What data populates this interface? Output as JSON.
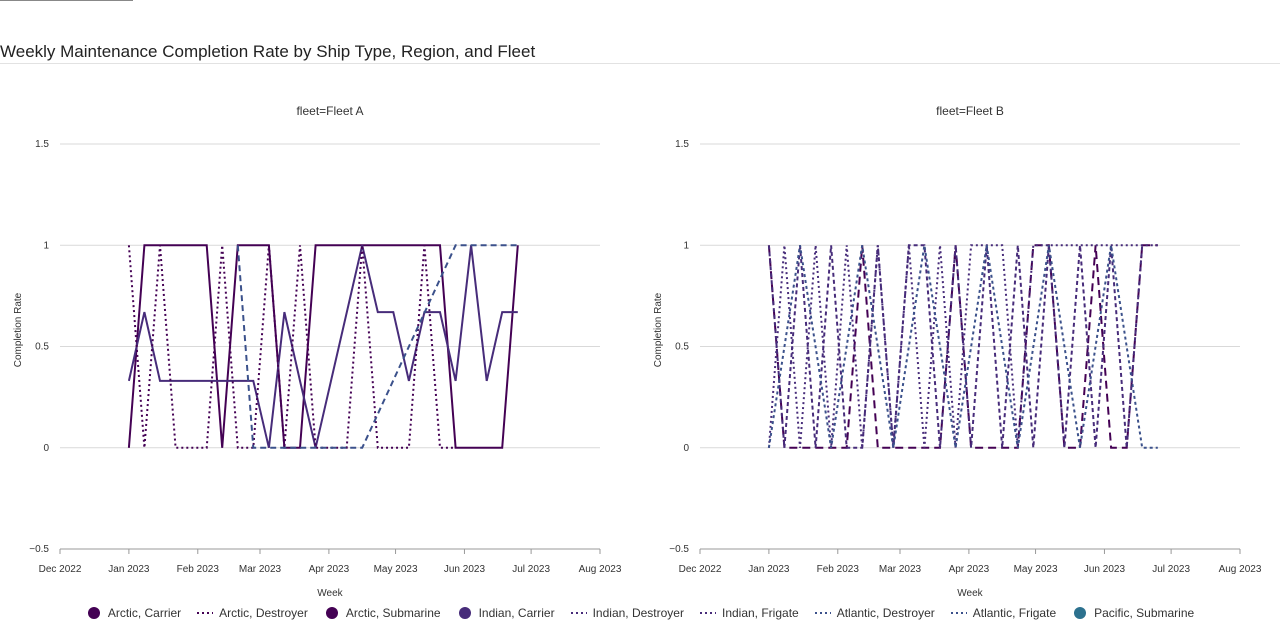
{
  "title": "Weekly Maintenance Completion Rate by Ship Type, Region, and Fleet",
  "legend": [
    {
      "name": "Arctic, Carrier",
      "color": "#440154",
      "symbol": "marker"
    },
    {
      "name": "Arctic, Destroyer",
      "color": "#440154",
      "symbol": "dot"
    },
    {
      "name": "Arctic, Submarine",
      "color": "#440154",
      "symbol": "marker"
    },
    {
      "name": "Indian, Carrier",
      "color": "#472c7a",
      "symbol": "marker"
    },
    {
      "name": "Indian, Destroyer",
      "color": "#472c7a",
      "symbol": "dot"
    },
    {
      "name": "Indian, Frigate",
      "color": "#472c7a",
      "symbol": "dot"
    },
    {
      "name": "Atlantic, Destroyer",
      "color": "#3b518b",
      "symbol": "dot"
    },
    {
      "name": "Atlantic, Frigate",
      "color": "#3b518b",
      "symbol": "dot"
    },
    {
      "name": "Pacific, Submarine",
      "color": "#2c718e",
      "symbol": "marker"
    }
  ],
  "chart_data": [
    {
      "type": "line",
      "title": "fleet=Fleet A",
      "xlabel": "Week",
      "ylabel": "Completion Rate",
      "xlim": [
        "2022-12-01",
        "2023-08-01"
      ],
      "ylim": [
        -0.5,
        1.5
      ],
      "yticks": [
        -0.5,
        0,
        0.5,
        1,
        1.5
      ],
      "ytick_labels": [
        "−0.5",
        "0",
        "0.5",
        "1",
        "1.5"
      ],
      "xticks": [
        "2022-12-01",
        "2023-01-01",
        "2023-02-01",
        "2023-03-01",
        "2023-04-01",
        "2023-05-01",
        "2023-06-01",
        "2023-07-01",
        "2023-08-01"
      ],
      "xtick_labels": [
        "Dec 2022",
        "Jan 2023",
        "Feb 2023",
        "Mar 2023",
        "Apr 2023",
        "May 2023",
        "Jun 2023",
        "Jul 2023",
        "Aug 2023"
      ],
      "grid": true,
      "series": [
        {
          "name": "Arctic, Submarine",
          "color": "#440154",
          "dash": "solid",
          "width": 2,
          "x": [
            "2023-01-01",
            "2023-01-08",
            "2023-02-05",
            "2023-02-12",
            "2023-02-19",
            "2023-03-05",
            "2023-03-12",
            "2023-03-19",
            "2023-03-26",
            "2023-05-21",
            "2023-05-28",
            "2023-06-18",
            "2023-06-25"
          ],
          "y": [
            0,
            1,
            1,
            0,
            1,
            1,
            0,
            0,
            1,
            1,
            0,
            0,
            1
          ]
        },
        {
          "name": "Indian, Carrier",
          "color": "#472c7a",
          "dash": "solid",
          "width": 2,
          "x": [
            "2023-01-01",
            "2023-01-08",
            "2023-01-15",
            "2023-01-22",
            "2023-02-05",
            "2023-02-26",
            "2023-03-05",
            "2023-03-12",
            "2023-03-19",
            "2023-03-26",
            "2023-04-16",
            "2023-04-23",
            "2023-04-30",
            "2023-05-07",
            "2023-05-14",
            "2023-05-21",
            "2023-05-28",
            "2023-06-04",
            "2023-06-11",
            "2023-06-18",
            "2023-06-25"
          ],
          "y": [
            0.33,
            0.67,
            0.33,
            0.33,
            0.33,
            0.33,
            0,
            0.67,
            0.33,
            0,
            1,
            0.67,
            0.67,
            0.33,
            0.67,
            0.67,
            0.33,
            1,
            0.33,
            0.67,
            0.67
          ]
        },
        {
          "name": "Arctic, Destroyer",
          "color": "#440154",
          "dash": "2,3",
          "width": 2,
          "x": [
            "2023-01-01",
            "2023-01-08",
            "2023-01-15",
            "2023-01-22",
            "2023-02-05",
            "2023-02-12",
            "2023-02-19",
            "2023-02-26",
            "2023-03-05",
            "2023-03-12",
            "2023-03-19",
            "2023-03-26",
            "2023-04-02",
            "2023-04-09",
            "2023-04-16",
            "2023-04-23",
            "2023-04-30",
            "2023-05-07",
            "2023-05-14",
            "2023-05-21",
            "2023-05-28"
          ],
          "y": [
            1,
            0,
            1,
            0,
            0,
            1,
            0,
            0,
            1,
            0,
            1,
            0,
            0,
            0,
            1,
            0,
            0,
            0,
            1,
            0,
            0
          ]
        },
        {
          "name": "Atlantic, Destroyer",
          "color": "#3b518b",
          "dash": "6,4",
          "width": 2,
          "x": [
            "2023-02-19",
            "2023-02-26",
            "2023-04-09",
            "2023-04-16",
            "2023-05-28",
            "2023-06-25"
          ],
          "y": [
            1,
            0,
            0,
            0,
            1,
            1
          ]
        }
      ]
    },
    {
      "type": "line",
      "title": "fleet=Fleet B",
      "xlabel": "Week",
      "ylabel": "Completion Rate",
      "xlim": [
        "2022-12-01",
        "2023-08-01"
      ],
      "ylim": [
        -0.5,
        1.5
      ],
      "yticks": [
        -0.5,
        0,
        0.5,
        1,
        1.5
      ],
      "ytick_labels": [
        "−0.5",
        "0",
        "0.5",
        "1",
        "1.5"
      ],
      "xticks": [
        "2022-12-01",
        "2023-01-01",
        "2023-02-01",
        "2023-03-01",
        "2023-04-01",
        "2023-05-01",
        "2023-06-01",
        "2023-07-01",
        "2023-08-01"
      ],
      "xtick_labels": [
        "Dec 2022",
        "Jan 2023",
        "Feb 2023",
        "Mar 2023",
        "Apr 2023",
        "May 2023",
        "Jun 2023",
        "Jul 2023",
        "Aug 2023"
      ],
      "grid": true,
      "series": [
        {
          "name": "Arctic, Carrier",
          "color": "#440154",
          "dash": "8,5",
          "width": 2,
          "x": [
            "2023-01-01",
            "2023-01-08",
            "2023-01-15",
            "2023-01-22",
            "2023-01-29",
            "2023-02-05",
            "2023-02-12",
            "2023-02-19",
            "2023-02-26",
            "2023-03-05",
            "2023-03-12",
            "2023-03-19",
            "2023-03-26",
            "2023-04-02",
            "2023-04-09",
            "2023-04-16",
            "2023-04-23",
            "2023-04-30",
            "2023-05-07",
            "2023-05-14",
            "2023-05-21",
            "2023-05-28",
            "2023-06-04",
            "2023-06-11",
            "2023-06-18",
            "2023-06-25"
          ],
          "y": [
            1,
            0,
            0,
            0,
            0,
            0,
            1,
            0,
            0,
            0,
            0,
            0,
            1,
            0,
            0,
            0,
            0,
            1,
            1,
            0,
            0,
            1,
            0,
            0,
            1,
            1
          ]
        },
        {
          "name": "Indian, Destroyer",
          "color": "#472c7a",
          "dash": "2,3",
          "width": 2,
          "x": [
            "2023-01-01",
            "2023-01-08",
            "2023-01-15",
            "2023-01-22",
            "2023-01-29",
            "2023-02-05",
            "2023-02-12",
            "2023-02-19",
            "2023-02-26",
            "2023-03-05",
            "2023-03-12",
            "2023-03-19",
            "2023-03-26",
            "2023-04-02",
            "2023-04-09",
            "2023-04-16",
            "2023-04-23",
            "2023-04-30",
            "2023-05-07",
            "2023-05-14",
            "2023-05-21",
            "2023-05-28",
            "2023-06-04",
            "2023-06-11",
            "2023-06-18",
            "2023-06-25"
          ],
          "y": [
            0,
            1,
            0,
            1,
            0,
            1,
            0,
            1,
            0,
            1,
            0,
            1,
            0,
            1,
            1,
            1,
            0,
            1,
            1,
            1,
            1,
            1,
            1,
            1,
            1,
            1
          ]
        },
        {
          "name": "Indian, Frigate",
          "color": "#472c7a",
          "dash": "4,3",
          "width": 2,
          "x": [
            "2023-01-01",
            "2023-01-08",
            "2023-01-15",
            "2023-01-22",
            "2023-01-29",
            "2023-02-05",
            "2023-02-12",
            "2023-02-19",
            "2023-02-26",
            "2023-03-05",
            "2023-03-12",
            "2023-03-19",
            "2023-03-26",
            "2023-04-02",
            "2023-04-09",
            "2023-04-16",
            "2023-04-23",
            "2023-04-30",
            "2023-05-07",
            "2023-05-14",
            "2023-05-21",
            "2023-05-28",
            "2023-06-04",
            "2023-06-11",
            "2023-06-18"
          ],
          "y": [
            1,
            0,
            1,
            0,
            1,
            0,
            0,
            1,
            0,
            1,
            1,
            0,
            1,
            0,
            1,
            0,
            1,
            0,
            1,
            0,
            1,
            0,
            1,
            0,
            1
          ]
        },
        {
          "name": "Atlantic, Frigate",
          "color": "#3b518b",
          "dash": "3,3",
          "width": 2,
          "x": [
            "2023-01-01",
            "2023-01-15",
            "2023-01-29",
            "2023-02-12",
            "2023-02-26",
            "2023-03-12",
            "2023-03-26",
            "2023-04-09",
            "2023-04-23",
            "2023-05-07",
            "2023-05-21",
            "2023-06-04",
            "2023-06-18",
            "2023-06-25"
          ],
          "y": [
            0,
            1,
            0,
            1,
            0,
            1,
            0,
            1,
            0,
            1,
            0,
            1,
            0,
            0
          ]
        }
      ]
    }
  ]
}
